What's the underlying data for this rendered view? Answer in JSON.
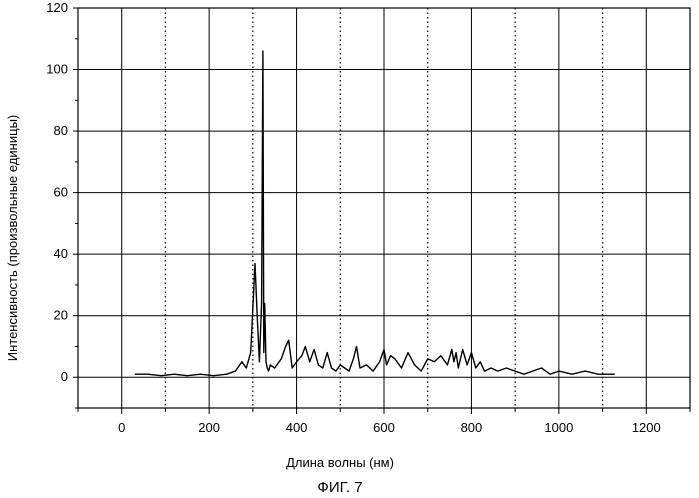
{
  "chart_data": {
    "type": "line",
    "title": "",
    "xlabel": "Длина волны  (нм)",
    "ylabel": "Интенсивность  (произвольные единицы)",
    "caption": "ФИГ. 7",
    "xlim": [
      -100,
      1300
    ],
    "ylim": [
      -10,
      120
    ],
    "x_ticks": [
      0,
      200,
      400,
      600,
      800,
      1000,
      1200
    ],
    "x_tick_labels": [
      "0",
      "200",
      "400",
      "600",
      "800",
      "1000",
      "1200"
    ],
    "y_ticks": [
      0,
      20,
      40,
      60,
      80,
      100,
      120
    ],
    "y_tick_labels": [
      "0",
      "20",
      "40",
      "60",
      "80",
      "100",
      "120"
    ],
    "grid": true,
    "grid_major_x_solid": [
      0,
      200,
      400,
      600,
      800,
      1000,
      1200
    ],
    "grid_minor_x_dotted": [
      100,
      300,
      500,
      700,
      900,
      1100
    ],
    "series": [
      {
        "color": "#000000",
        "x": [
          30,
          60,
          90,
          120,
          150,
          180,
          210,
          240,
          260,
          275,
          285,
          295,
          305,
          310,
          315,
          320,
          323,
          325,
          327,
          330,
          333,
          336,
          340,
          350,
          365,
          375,
          382,
          390,
          400,
          412,
          420,
          430,
          440,
          450,
          460,
          470,
          480,
          490,
          500,
          510,
          520,
          530,
          537,
          545,
          560,
          575,
          590,
          600,
          606,
          615,
          625,
          640,
          655,
          670,
          685,
          700,
          715,
          730,
          745,
          755,
          760,
          765,
          770,
          780,
          790,
          800,
          810,
          820,
          830,
          845,
          860,
          880,
          900,
          920,
          940,
          960,
          980,
          1000,
          1030,
          1060,
          1090,
          1110,
          1128
        ],
        "y": [
          1,
          1,
          0.5,
          1,
          0.5,
          1,
          0.5,
          1,
          2,
          5,
          3,
          8,
          37,
          20,
          5,
          24,
          106,
          8,
          24,
          5,
          3,
          2,
          4,
          3,
          6,
          10,
          12,
          3,
          5,
          7,
          10,
          5,
          9,
          4,
          3,
          8,
          3,
          2,
          4,
          3,
          2,
          6,
          10,
          3,
          4,
          2,
          5,
          9,
          4,
          7,
          6,
          3,
          8,
          4,
          2,
          6,
          5,
          7,
          4,
          9,
          5,
          8,
          3,
          9,
          4,
          8,
          3,
          5,
          2,
          3,
          2,
          3,
          2,
          1,
          2,
          3,
          1,
          2,
          1,
          2,
          1,
          1,
          1
        ]
      }
    ]
  }
}
